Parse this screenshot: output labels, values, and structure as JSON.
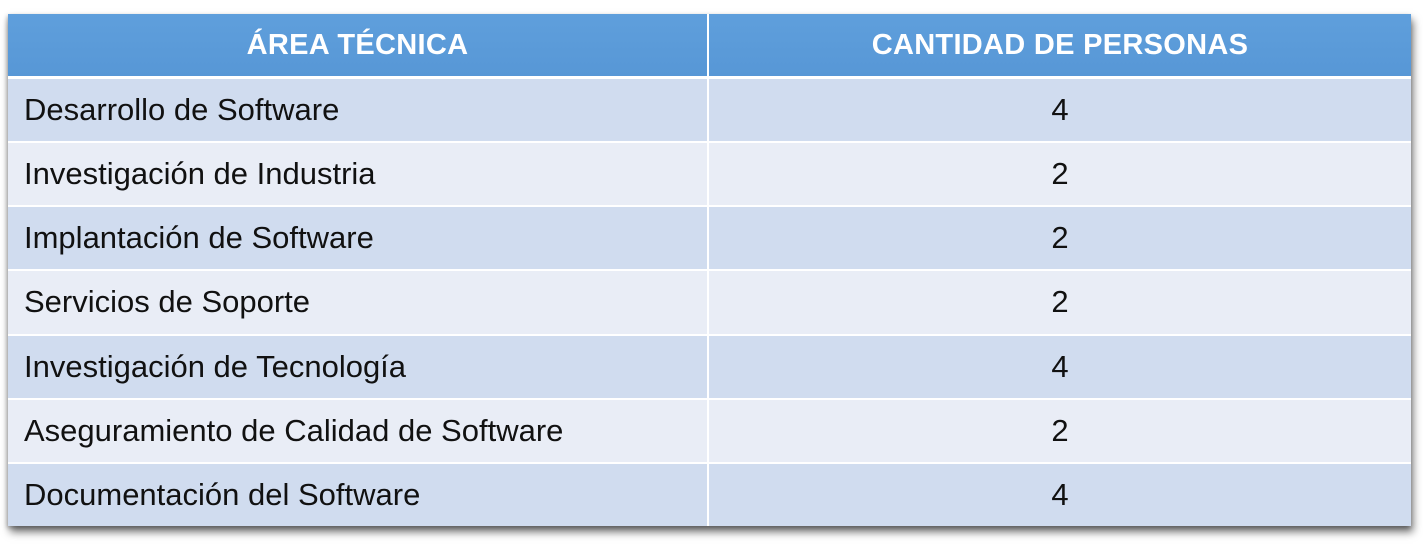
{
  "table": {
    "headers": {
      "area": "ÁREA TÉCNICA",
      "count": "CANTIDAD DE PERSONAS"
    },
    "rows": [
      {
        "area": "Desarrollo de Software",
        "count": "4"
      },
      {
        "area": "Investigación de Industria",
        "count": "2"
      },
      {
        "area": "Implantación de Software",
        "count": "2"
      },
      {
        "area": "Servicios de Soporte",
        "count": "2"
      },
      {
        "area": "Investigación de Tecnología",
        "count": "4"
      },
      {
        "area": "Aseguramiento de Calidad de Software",
        "count": "2"
      },
      {
        "area": "Documentación del Software",
        "count": "4"
      }
    ],
    "colors": {
      "header_bg": "#5b9bd5",
      "row_odd_bg": "#d0dcef",
      "row_even_bg": "#e9edf6"
    }
  }
}
